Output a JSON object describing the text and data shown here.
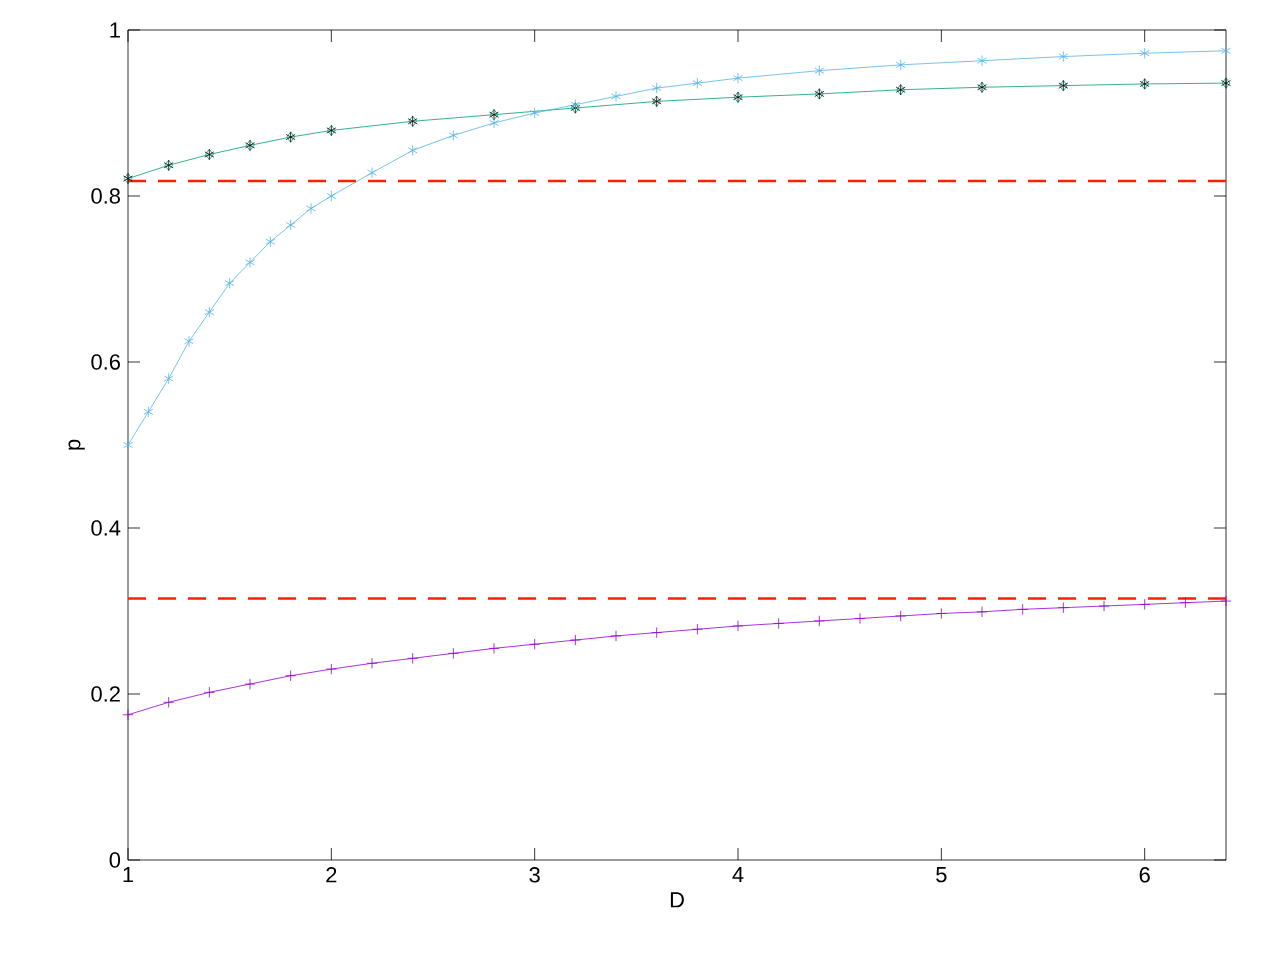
{
  "chart_data": {
    "type": "line",
    "xlabel": "D",
    "ylabel": "p",
    "xlim": [
      1,
      6.4
    ],
    "xticks": [
      1,
      2,
      3,
      4,
      5,
      6
    ],
    "ylim": [
      0,
      1
    ],
    "yticks": [
      0,
      0.2,
      0.4,
      0.6,
      0.8,
      1
    ],
    "series": [
      {
        "color": "#9400d3",
        "marker": "plus",
        "x": [
          1.0,
          1.2,
          1.4,
          1.6,
          1.8,
          2.0,
          2.2,
          2.4,
          2.6,
          2.8,
          3.0,
          3.2,
          3.4,
          3.6,
          3.8,
          4.0,
          4.2,
          4.4,
          4.6,
          4.8,
          5.0,
          5.2,
          5.4,
          5.6,
          5.8,
          6.0,
          6.2,
          6.4
        ],
        "values": [
          0.175,
          0.19,
          0.202,
          0.212,
          0.222,
          0.23,
          0.237,
          0.243,
          0.249,
          0.255,
          0.26,
          0.265,
          0.27,
          0.274,
          0.278,
          0.282,
          0.285,
          0.288,
          0.291,
          0.294,
          0.297,
          0.299,
          0.302,
          0.304,
          0.306,
          0.308,
          0.31,
          0.312
        ]
      },
      {
        "color": "#009e73",
        "marker": "diamond",
        "x": [
          1.0,
          1.2,
          1.4,
          1.6,
          1.8,
          2.0,
          2.4,
          2.8,
          3.2,
          3.6,
          4.0,
          4.4,
          4.8,
          5.2,
          5.6,
          6.0,
          6.4
        ],
        "values": [
          0.821,
          0.837,
          0.85,
          0.861,
          0.871,
          0.879,
          0.89,
          0.898,
          0.906,
          0.914,
          0.919,
          0.923,
          0.928,
          0.931,
          0.933,
          0.935,
          0.936
        ]
      },
      {
        "color": "#000000",
        "marker": "cross",
        "type": "scatter",
        "x": [
          1.0,
          1.2,
          1.4,
          1.6,
          1.8,
          2.0,
          2.4,
          2.8,
          3.2,
          3.6,
          4.0,
          4.4,
          4.8,
          5.2,
          5.6,
          6.0,
          6.4
        ],
        "values": [
          0.821,
          0.837,
          0.85,
          0.861,
          0.871,
          0.879,
          0.89,
          0.898,
          0.906,
          0.914,
          0.919,
          0.923,
          0.928,
          0.931,
          0.933,
          0.935,
          0.936
        ]
      },
      {
        "color": "#56b4e9",
        "marker": "cross",
        "x": [
          1.0,
          1.1,
          1.2,
          1.3,
          1.4,
          1.5,
          1.6,
          1.7,
          1.8,
          1.9,
          2.0,
          2.2,
          2.4,
          2.6,
          2.8,
          3.0,
          3.2,
          3.4,
          3.6,
          3.8,
          4.0,
          4.4,
          4.8,
          5.2,
          5.6,
          6.0,
          6.4
        ],
        "values": [
          0.5,
          0.54,
          0.58,
          0.625,
          0.66,
          0.695,
          0.72,
          0.745,
          0.765,
          0.785,
          0.8,
          0.828,
          0.855,
          0.873,
          0.888,
          0.9,
          0.91,
          0.92,
          0.93,
          0.936,
          0.942,
          0.951,
          0.958,
          0.963,
          0.968,
          0.972,
          0.975
        ]
      }
    ],
    "ref_lines": [
      {
        "axis": "y",
        "value": 0.818,
        "color": "#ff2000",
        "line_style": "dashed"
      },
      {
        "axis": "y",
        "value": 0.315,
        "color": "#ff2000",
        "line_style": "dashed"
      }
    ]
  }
}
